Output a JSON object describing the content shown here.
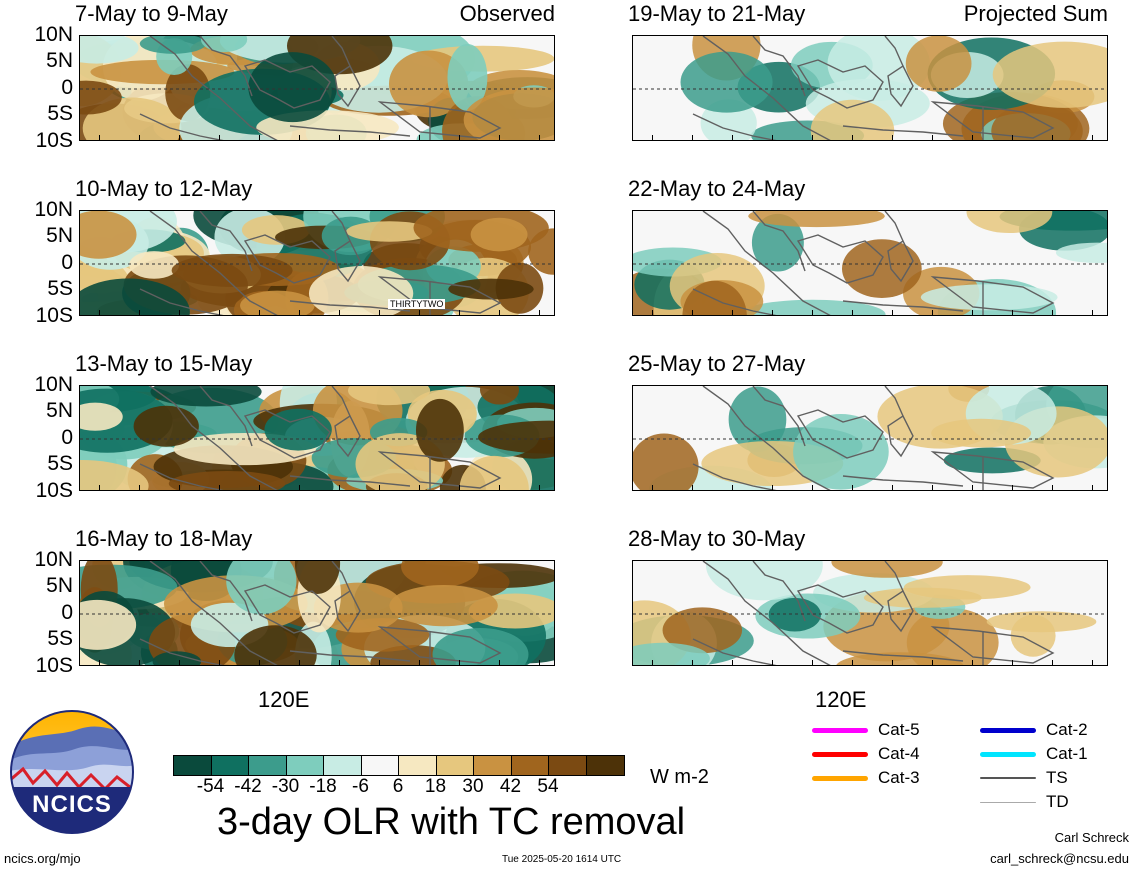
{
  "panels_left": [
    {
      "title": "7-May to 9-May",
      "tag": "Observed",
      "marker": ""
    },
    {
      "title": "10-May to 12-May",
      "tag": "",
      "marker": "THIRTYTWO"
    },
    {
      "title": "13-May to 15-May",
      "tag": "",
      "marker": ""
    },
    {
      "title": "16-May to 18-May",
      "tag": "",
      "marker": ""
    }
  ],
  "panels_right": [
    {
      "title": "19-May to 21-May",
      "tag": "Projected Sum"
    },
    {
      "title": "22-May to 24-May",
      "tag": ""
    },
    {
      "title": "25-May to 27-May",
      "tag": ""
    },
    {
      "title": "28-May to 30-May",
      "tag": ""
    }
  ],
  "lat_labels": [
    "10N",
    "5N",
    "0",
    "5S",
    "10S"
  ],
  "lon_label": "120E",
  "colorbar": {
    "colors": [
      "#0a4a3c",
      "#0f7060",
      "#3c9c8c",
      "#7ecdbd",
      "#c8ece4",
      "#f7f7f7",
      "#f6e8c1",
      "#e6c77e",
      "#c99241",
      "#a0651e",
      "#7b4a12",
      "#4d3208"
    ],
    "labels": [
      "-54",
      "-42",
      "-30",
      "-18",
      "-6",
      "6",
      "18",
      "30",
      "42",
      "54"
    ],
    "units": "W m-2"
  },
  "main_title": "3-day OLR with TC removal",
  "logo_text": "NCICS",
  "legend": {
    "col1": [
      {
        "label": "Cat-5",
        "color": "#ff00ff"
      },
      {
        "label": "Cat-4",
        "color": "#ff0000"
      },
      {
        "label": "Cat-3",
        "color": "#ffa500"
      }
    ],
    "col2": [
      {
        "label": "Cat-2",
        "color": "#0000cd"
      },
      {
        "label": "Cat-1",
        "color": "#00e5ff"
      },
      {
        "label": "TS",
        "color": "#555555"
      },
      {
        "label": "TD",
        "color": "#aaaaaa"
      }
    ]
  },
  "footer": {
    "url": "ncics.org/mjo",
    "timestamp": "Tue 2025-05-20 1614 UTC",
    "author": "Carl Schreck",
    "email": "carl_schreck@ncsu.edu"
  }
}
